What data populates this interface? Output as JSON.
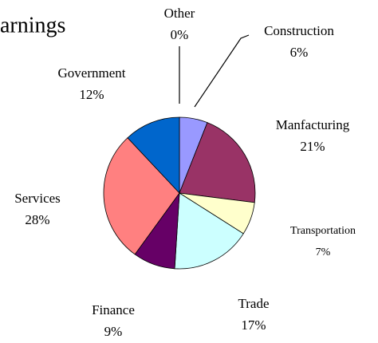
{
  "chart_data": {
    "type": "pie",
    "title": "arnings",
    "categories": [
      "Other",
      "Construction",
      "Manfacturing",
      "Transportation",
      "Trade",
      "Finance",
      "Services",
      "Government"
    ],
    "values": [
      0,
      6,
      21,
      7,
      17,
      9,
      28,
      12
    ],
    "value_labels": [
      "0%",
      "6%",
      "21%",
      "7%",
      "17%",
      "9%",
      "28%",
      "12%"
    ],
    "colors": [
      "#000080",
      "#9999ff",
      "#993366",
      "#ffffcc",
      "#ccffff",
      "#660066",
      "#ff8080",
      "#0066cc"
    ]
  }
}
